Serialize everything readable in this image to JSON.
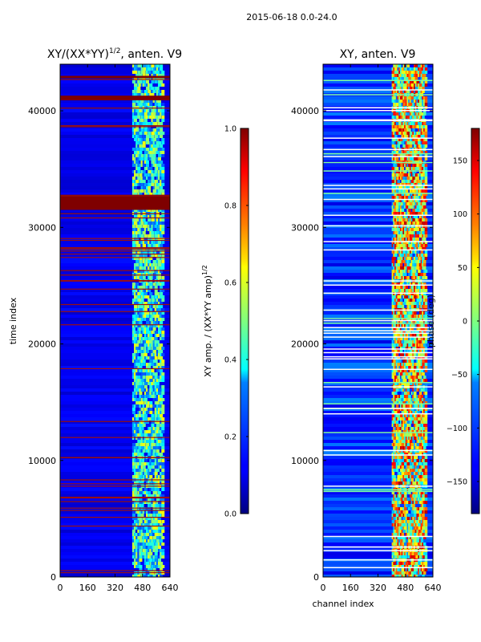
{
  "figure": {
    "suptitle": "2015-06-18 0.0-24.0"
  },
  "chart_data": [
    {
      "type": "heatmap",
      "title": "XY/(XX*YY)^{1/2}, anten. V9",
      "title_main": "XY/(XX*YY)",
      "title_exp": "1/2",
      "title_suffix": ", anten. V9",
      "xlabel": "",
      "ylabel": "time index",
      "xlim": [
        0,
        640
      ],
      "ylim": [
        0,
        44000
      ],
      "xticks": [
        0,
        160,
        320,
        480,
        640
      ],
      "yticks": [
        0,
        10000,
        20000,
        30000,
        40000
      ],
      "colormap": "jet",
      "colorbar": {
        "label": "XY amp. / (XX*YY amp)^{1/2}",
        "label_main": "XY amp. / (XX*YY amp)",
        "label_exp": "1/2",
        "range": [
          0.0,
          1.0
        ],
        "ticks": [
          "0.0",
          "0.2",
          "0.4",
          "0.6",
          "0.8",
          "1.0"
        ]
      },
      "features": {
        "active_channel_band": [
          420,
          600
        ],
        "saturated_row_bands": [
          [
            31500,
            32800
          ],
          [
            40900,
            41300
          ],
          [
            42800,
            43000
          ]
        ]
      }
    },
    {
      "type": "heatmap",
      "title": "XY, anten. V9",
      "xlabel": "channel index",
      "ylabel": "",
      "xlim": [
        0,
        640
      ],
      "ylim": [
        0,
        44000
      ],
      "xticks": [
        0,
        160,
        320,
        480,
        640
      ],
      "yticks": [
        0,
        10000,
        20000,
        30000,
        40000
      ],
      "colormap": "jet",
      "colorbar": {
        "label": "phase (deg)",
        "range": [
          -180,
          180
        ],
        "ticks": [
          "150",
          "100",
          "50",
          "0",
          "−50",
          "−100",
          "−150"
        ]
      },
      "features": {
        "active_channel_band": [
          400,
          600
        ]
      }
    }
  ]
}
